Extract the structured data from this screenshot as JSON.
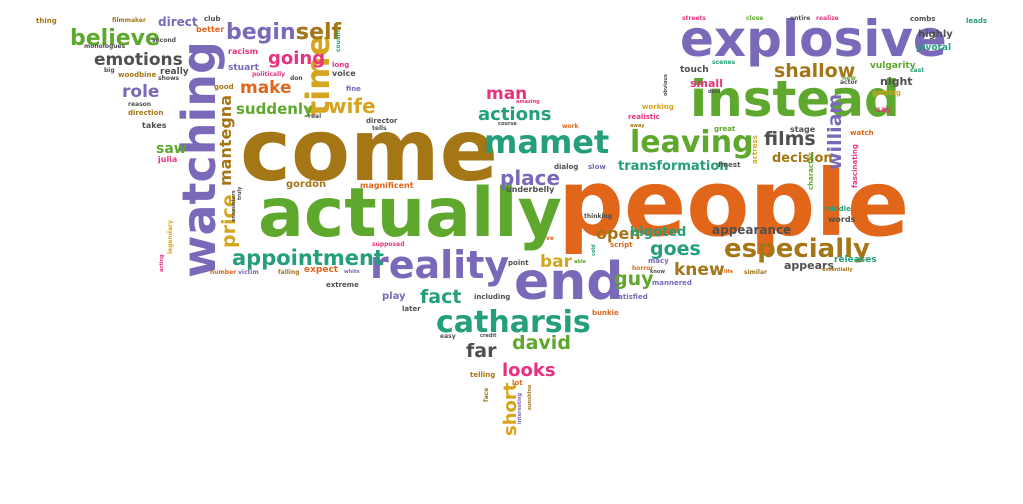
{
  "palette": {
    "purple": "#7a68b8",
    "green": "#5ea82d",
    "brown": "#a47616",
    "orange": "#e1661a",
    "teal": "#249f7c",
    "pink": "#e8327f",
    "yellow": "#d6a51d",
    "gray": "#4f4f4f"
  },
  "words": {
    "people": "people",
    "come": "come",
    "actually": "actually",
    "explosive": "explosive",
    "instead": "instead",
    "end": "end",
    "watching": "watching",
    "reality": "reality",
    "catharsis": "catharsis",
    "mamet": "mamet",
    "leaving": "leaving",
    "especially": "especially",
    "time": "time",
    "believe": "believe",
    "emotions": "emotions",
    "begins": "begins",
    "self": "self",
    "shallow": "shallow",
    "films": "films",
    "william": "william",
    "appointment": "appointment",
    "actions": "actions",
    "place": "place",
    "goes": "goes",
    "fact": "fact",
    "david": "david",
    "far": "far",
    "looks": "looks",
    "short": "short",
    "knew": "knew",
    "guy": "guy",
    "open": "open",
    "bigoted": "bigoted",
    "bar": "bar",
    "man": "man",
    "going": "going",
    "make": "make",
    "wife": "wife",
    "role": "role",
    "suddenly": "suddenly",
    "price": "price",
    "mantegna": "mantegna",
    "saw": "saw",
    "julia": "julia",
    "gordon": "gordon",
    "magnificent": "magnificent",
    "transformation": "transformation",
    "decision": "decision",
    "appearance": "appearance",
    "appears": "appears",
    "releases": "releases",
    "stage": "stage",
    "night": "night",
    "highly": "highly",
    "pivotal": "pivotal",
    "vulgarity": "vulgarity",
    "small": "small",
    "touch": "touch",
    "scenes": "scenes",
    "direct": "direct",
    "club": "club",
    "better": "better",
    "filmmaker": "filmmaker",
    "second": "second",
    "monologues": "monologues",
    "thing": "thing",
    "streets": "streets",
    "close": "close",
    "entire": "entire",
    "realize": "realize",
    "combs": "combs",
    "leads": "leads",
    "stuart": "stuart",
    "racism": "racism",
    "really": "really",
    "big": "big",
    "woodbine": "woodbine",
    "shows": "shows",
    "politically": "politically",
    "good": "good",
    "reason": "reason",
    "direction": "direction",
    "takes": "takes",
    "long": "long",
    "voice": "voice",
    "cousin": "cousin",
    "don": "don",
    "fine": "fine",
    "real": "real",
    "director": "director",
    "tells": "tells",
    "amazing": "amazing",
    "course": "course",
    "work": "work",
    "away": "away",
    "realistic": "realistic",
    "working": "working",
    "obvious": "obvious",
    "didn": "didn",
    "great": "great",
    "new": "new",
    "actor": "actor",
    "cast": "cast",
    "getting": "getting",
    "say": "say",
    "watch": "watch",
    "fascinating": "fascinating",
    "character": "character",
    "middle": "middle",
    "words": "words",
    "essentially": "essentially",
    "actress": "actress",
    "finest": "finest",
    "slow": "slow",
    "dialog": "dialog",
    "thinking": "thinking",
    "script": "script",
    "supposed": "supposed",
    "underbelly": "underbelly",
    "ve": "ve",
    "macy": "macy",
    "horror": "horror",
    "know": "know",
    "mannered": "mannered",
    "life": "life",
    "similar": "similar",
    "able": "able",
    "cold": "cold",
    "point": "point",
    "including": "including",
    "later": "later",
    "play": "play",
    "satisfied": "satisfied",
    "bunkie": "bunkie",
    "easy": "easy",
    "credit": "credit",
    "telling": "telling",
    "lot": "lot",
    "face": "face",
    "interesting": "interesting",
    "sunshine": "sunshine",
    "extreme": "extreme",
    "white": "white",
    "victim": "victim",
    "number": "number",
    "falling": "falling",
    "expect": "expect",
    "acting": "acting",
    "legendary": "legendary",
    "encounters": "encounters",
    "truly": "truly"
  }
}
